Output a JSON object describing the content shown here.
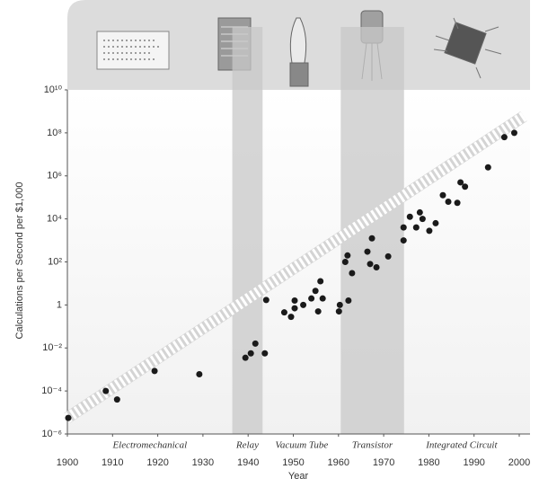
{
  "chart_data": {
    "type": "scatter",
    "xlabel": "Year",
    "ylabel": "Calculations per Second per $1,000",
    "x": [
      1900.2,
      1908.5,
      1911,
      1919.3,
      1929.2,
      1939.4,
      1940.6,
      1941.6,
      1943.7,
      1944,
      1948,
      1949.5,
      1950.3,
      1950.3,
      1952.2,
      1954,
      1954.9,
      1955.5,
      1956,
      1956.5,
      1960.1,
      1960.3,
      1961.5,
      1962,
      1962.2,
      1963,
      1966.4,
      1967,
      1967.4,
      1968.4,
      1971,
      1974.4,
      1974.4,
      1975.8,
      1977.2,
      1978,
      1978.6,
      1980.1,
      1981.5,
      1983.1,
      1984.3,
      1986.3,
      1987,
      1988,
      1993.1,
      1996.7,
      1998.9
    ],
    "values": [
      5.6e-06,
      0.0001,
      4e-05,
      0.00085,
      0.0006,
      0.0035,
      0.0056,
      0.016,
      0.0056,
      1.7,
      0.45,
      0.28,
      0.7,
      1.6,
      1,
      2,
      4.5,
      0.5,
      12.6,
      2,
      0.5,
      1,
      100,
      200,
      1.6,
      30,
      300,
      80,
      1250,
      56,
      180,
      1000,
      4000,
      12600,
      4000,
      20000,
      10000,
      2800,
      6300,
      126000,
      63000,
      56000,
      500000,
      316000,
      2500000,
      63000000,
      100000000
    ],
    "color": "#1a1a1a",
    "trend": {
      "x": [
        1900,
        2001
      ],
      "y": [
        5.6e-06,
        590000000
      ]
    },
    "eras": [
      {
        "label": "Electromechanical",
        "start": 1900,
        "end": 1936.5,
        "shaded": false
      },
      {
        "label": "Relay",
        "start": 1936.5,
        "end": 1943.2,
        "shaded": true
      },
      {
        "label": "Vacuum Tube",
        "start": 1943.2,
        "end": 1960.5,
        "shaded": false
      },
      {
        "label": "Transistor",
        "start": 1960.5,
        "end": 1974.5,
        "shaded": true
      },
      {
        "label": "Integrated Circuit",
        "start": 1974.5,
        "end": 2000,
        "shaded": false
      }
    ],
    "xlim": [
      1900,
      2000
    ],
    "xticks": [
      1900,
      1910,
      1920,
      1930,
      1940,
      1950,
      1960,
      1970,
      1980,
      1990,
      2000
    ],
    "ylim": [
      1e-06,
      10000000000
    ],
    "ylog": true,
    "grid": false,
    "yticks": [
      {
        "value": 1e-06,
        "label": "10⁻⁶"
      },
      {
        "value": 0.0001,
        "label": "10⁻⁴"
      },
      {
        "value": 0.01,
        "label": "10⁻²"
      },
      1,
      {
        "value": 100,
        "label": "10²"
      },
      {
        "value": 10000,
        "label": "10⁴"
      },
      {
        "value": 1000000,
        "label": "10⁶"
      },
      {
        "value": 100000000,
        "label": "10⁸"
      },
      {
        "value": 10000000000,
        "label": "10¹⁰"
      }
    ]
  }
}
